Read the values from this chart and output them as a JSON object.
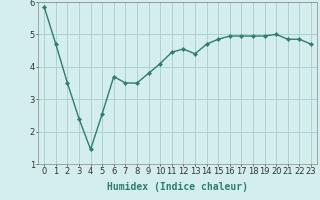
{
  "title": "",
  "xlabel": "Humidex (Indice chaleur)",
  "x": [
    0,
    1,
    2,
    3,
    4,
    5,
    6,
    7,
    8,
    9,
    10,
    11,
    12,
    13,
    14,
    15,
    16,
    17,
    18,
    19,
    20,
    21,
    22,
    23
  ],
  "y": [
    5.85,
    4.7,
    3.5,
    2.4,
    1.45,
    2.55,
    3.7,
    3.5,
    3.5,
    3.8,
    4.1,
    4.45,
    4.55,
    4.4,
    4.7,
    4.85,
    4.95,
    4.95,
    4.95,
    4.95,
    5.0,
    4.85,
    4.85,
    4.7
  ],
  "line_color": "#2e7d6e",
  "marker": "D",
  "marker_size": 2.2,
  "background_color": "#d4eeee",
  "grid_color": "#aacccc",
  "ylim": [
    1,
    6
  ],
  "xlim": [
    -0.5,
    23.5
  ],
  "yticks": [
    1,
    2,
    3,
    4,
    5,
    6
  ],
  "xticks": [
    0,
    1,
    2,
    3,
    4,
    5,
    6,
    7,
    8,
    9,
    10,
    11,
    12,
    13,
    14,
    15,
    16,
    17,
    18,
    19,
    20,
    21,
    22,
    23
  ],
  "xlabel_fontsize": 7,
  "tick_fontsize": 6,
  "line_width": 1.0
}
